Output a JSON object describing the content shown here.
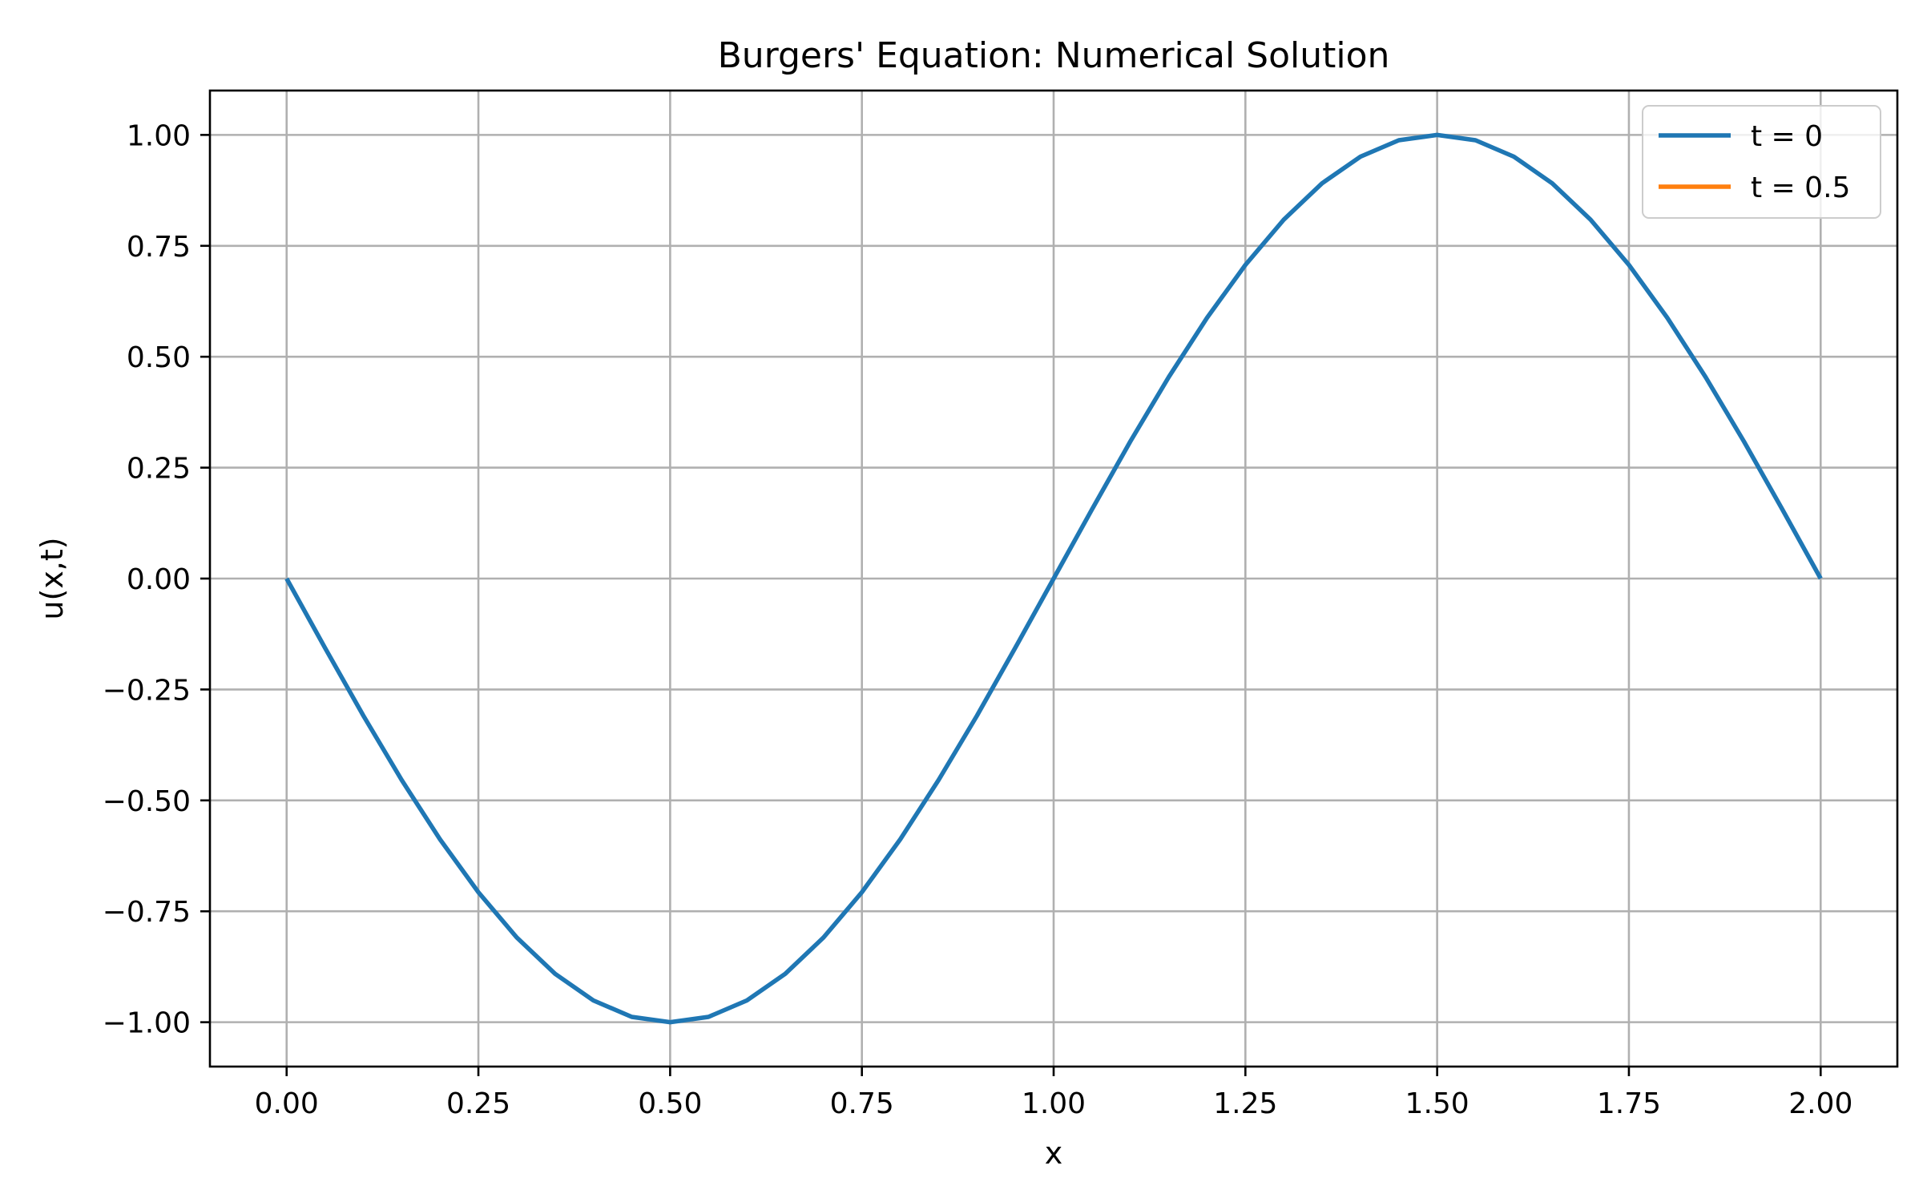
{
  "chart_data": {
    "type": "line",
    "title": "Burgers' Equation: Numerical Solution",
    "xlabel": "x",
    "ylabel": "u(x,t)",
    "xlim": [
      -0.1,
      2.1
    ],
    "ylim": [
      -1.1,
      1.1
    ],
    "x_ticks": [
      0.0,
      0.25,
      0.5,
      0.75,
      1.0,
      1.25,
      1.5,
      1.75,
      2.0
    ],
    "x_tick_labels": [
      "0.00",
      "0.25",
      "0.50",
      "0.75",
      "1.00",
      "1.25",
      "1.50",
      "1.75",
      "2.00"
    ],
    "y_ticks": [
      -1.0,
      -0.75,
      -0.5,
      -0.25,
      0.0,
      0.25,
      0.5,
      0.75,
      1.0
    ],
    "y_tick_labels": [
      "−1.00",
      "−0.75",
      "−0.50",
      "−0.25",
      "0.00",
      "0.25",
      "0.50",
      "0.75",
      "1.00"
    ],
    "grid": true,
    "legend_position": "top-right",
    "series": [
      {
        "name": "t = 0",
        "color": "#1f77b4",
        "x": [
          0.0,
          0.05,
          0.1,
          0.15,
          0.2,
          0.25,
          0.3,
          0.35,
          0.4,
          0.45,
          0.5,
          0.55,
          0.6,
          0.65,
          0.7,
          0.75,
          0.8,
          0.85,
          0.9,
          0.95,
          1.0,
          1.05,
          1.1,
          1.15,
          1.2,
          1.25,
          1.3,
          1.35,
          1.4,
          1.45,
          1.5,
          1.55,
          1.6,
          1.65,
          1.7,
          1.75,
          1.8,
          1.85,
          1.9,
          1.95,
          2.0
        ],
        "y": [
          0.0,
          -0.156,
          -0.309,
          -0.454,
          -0.588,
          -0.707,
          -0.809,
          -0.891,
          -0.951,
          -0.988,
          -1.0,
          -0.988,
          -0.951,
          -0.891,
          -0.809,
          -0.707,
          -0.588,
          -0.454,
          -0.309,
          -0.156,
          0.0,
          0.156,
          0.309,
          0.454,
          0.588,
          0.707,
          0.809,
          0.891,
          0.951,
          0.988,
          1.0,
          0.988,
          0.951,
          0.891,
          0.809,
          0.707,
          0.588,
          0.454,
          0.309,
          0.156,
          0.0
        ]
      },
      {
        "name": "t = 0.5",
        "color": "#ff7f0e",
        "x": [],
        "y": []
      }
    ]
  }
}
